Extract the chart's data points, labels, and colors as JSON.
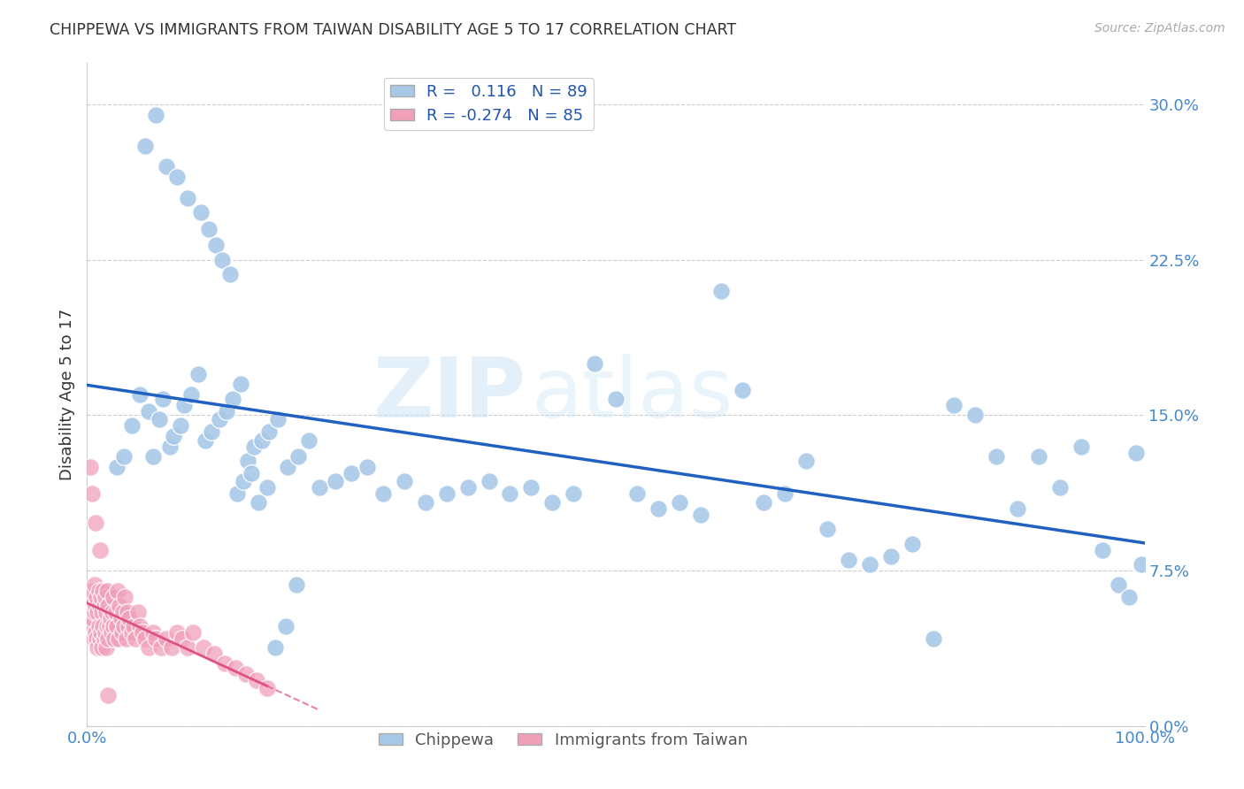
{
  "title": "CHIPPEWA VS IMMIGRANTS FROM TAIWAN DISABILITY AGE 5 TO 17 CORRELATION CHART",
  "source": "Source: ZipAtlas.com",
  "ylabel": "Disability Age 5 to 17",
  "xlim": [
    0.0,
    1.0
  ],
  "ylim": [
    0.0,
    0.32
  ],
  "yticks": [
    0.0,
    0.075,
    0.15,
    0.225,
    0.3
  ],
  "ytick_labels": [
    "0.0%",
    "7.5%",
    "15.0%",
    "22.5%",
    "30.0%"
  ],
  "xticks": [
    0.0,
    1.0
  ],
  "xtick_labels": [
    "0.0%",
    "100.0%"
  ],
  "chippewa_color": "#a8c8e8",
  "taiwan_color": "#f0a0b8",
  "line_chippewa_color": "#2060c0",
  "line_taiwan_color": "#e05080",
  "watermark_color": "#cce0f0",
  "background_color": "#ffffff",
  "grid_color": "#cccccc",
  "chippewa_x": [
    0.028,
    0.035,
    0.042,
    0.05,
    0.058,
    0.062,
    0.068,
    0.072,
    0.078,
    0.082,
    0.088,
    0.092,
    0.098,
    0.105,
    0.112,
    0.118,
    0.125,
    0.132,
    0.138,
    0.145,
    0.152,
    0.158,
    0.165,
    0.172,
    0.18,
    0.19,
    0.2,
    0.21,
    0.22,
    0.235,
    0.25,
    0.265,
    0.28,
    0.3,
    0.32,
    0.34,
    0.36,
    0.38,
    0.4,
    0.42,
    0.44,
    0.46,
    0.48,
    0.5,
    0.52,
    0.54,
    0.56,
    0.58,
    0.6,
    0.62,
    0.64,
    0.66,
    0.68,
    0.7,
    0.72,
    0.74,
    0.76,
    0.78,
    0.8,
    0.82,
    0.84,
    0.86,
    0.88,
    0.9,
    0.92,
    0.94,
    0.96,
    0.975,
    0.985,
    0.992,
    0.997,
    0.055,
    0.065,
    0.075,
    0.085,
    0.095,
    0.108,
    0.115,
    0.122,
    0.128,
    0.135,
    0.142,
    0.148,
    0.155,
    0.162,
    0.17,
    0.178,
    0.188,
    0.198
  ],
  "chippewa_y": [
    0.125,
    0.13,
    0.145,
    0.16,
    0.152,
    0.13,
    0.148,
    0.158,
    0.135,
    0.14,
    0.145,
    0.155,
    0.16,
    0.17,
    0.138,
    0.142,
    0.148,
    0.152,
    0.158,
    0.165,
    0.128,
    0.135,
    0.138,
    0.142,
    0.148,
    0.125,
    0.13,
    0.138,
    0.115,
    0.118,
    0.122,
    0.125,
    0.112,
    0.118,
    0.108,
    0.112,
    0.115,
    0.118,
    0.112,
    0.115,
    0.108,
    0.112,
    0.175,
    0.158,
    0.112,
    0.105,
    0.108,
    0.102,
    0.21,
    0.162,
    0.108,
    0.112,
    0.128,
    0.095,
    0.08,
    0.078,
    0.082,
    0.088,
    0.042,
    0.155,
    0.15,
    0.13,
    0.105,
    0.13,
    0.115,
    0.135,
    0.085,
    0.068,
    0.062,
    0.132,
    0.078,
    0.28,
    0.295,
    0.27,
    0.265,
    0.255,
    0.248,
    0.24,
    0.232,
    0.225,
    0.218,
    0.112,
    0.118,
    0.122,
    0.108,
    0.115,
    0.038,
    0.048,
    0.068
  ],
  "taiwan_x": [
    0.001,
    0.002,
    0.003,
    0.004,
    0.005,
    0.005,
    0.006,
    0.007,
    0.007,
    0.008,
    0.008,
    0.009,
    0.009,
    0.01,
    0.01,
    0.011,
    0.011,
    0.012,
    0.012,
    0.013,
    0.013,
    0.014,
    0.014,
    0.015,
    0.015,
    0.016,
    0.016,
    0.017,
    0.017,
    0.018,
    0.018,
    0.019,
    0.019,
    0.02,
    0.02,
    0.021,
    0.022,
    0.023,
    0.024,
    0.025,
    0.025,
    0.026,
    0.027,
    0.028,
    0.029,
    0.03,
    0.031,
    0.032,
    0.033,
    0.034,
    0.035,
    0.036,
    0.037,
    0.038,
    0.039,
    0.04,
    0.042,
    0.044,
    0.046,
    0.048,
    0.05,
    0.052,
    0.055,
    0.058,
    0.062,
    0.065,
    0.07,
    0.075,
    0.08,
    0.085,
    0.09,
    0.095,
    0.1,
    0.11,
    0.12,
    0.13,
    0.14,
    0.15,
    0.16,
    0.17,
    0.003,
    0.005,
    0.008,
    0.012,
    0.02
  ],
  "taiwan_y": [
    0.055,
    0.062,
    0.058,
    0.048,
    0.052,
    0.065,
    0.042,
    0.055,
    0.068,
    0.045,
    0.058,
    0.042,
    0.062,
    0.038,
    0.055,
    0.048,
    0.065,
    0.042,
    0.058,
    0.045,
    0.062,
    0.038,
    0.055,
    0.048,
    0.065,
    0.042,
    0.058,
    0.045,
    0.062,
    0.038,
    0.055,
    0.048,
    0.065,
    0.042,
    0.058,
    0.048,
    0.052,
    0.045,
    0.055,
    0.048,
    0.062,
    0.042,
    0.055,
    0.048,
    0.065,
    0.042,
    0.058,
    0.052,
    0.045,
    0.055,
    0.048,
    0.062,
    0.042,
    0.055,
    0.048,
    0.052,
    0.045,
    0.048,
    0.042,
    0.055,
    0.048,
    0.045,
    0.042,
    0.038,
    0.045,
    0.042,
    0.038,
    0.042,
    0.038,
    0.045,
    0.042,
    0.038,
    0.045,
    0.038,
    0.035,
    0.03,
    0.028,
    0.025,
    0.022,
    0.018,
    0.125,
    0.112,
    0.098,
    0.085,
    0.015
  ]
}
